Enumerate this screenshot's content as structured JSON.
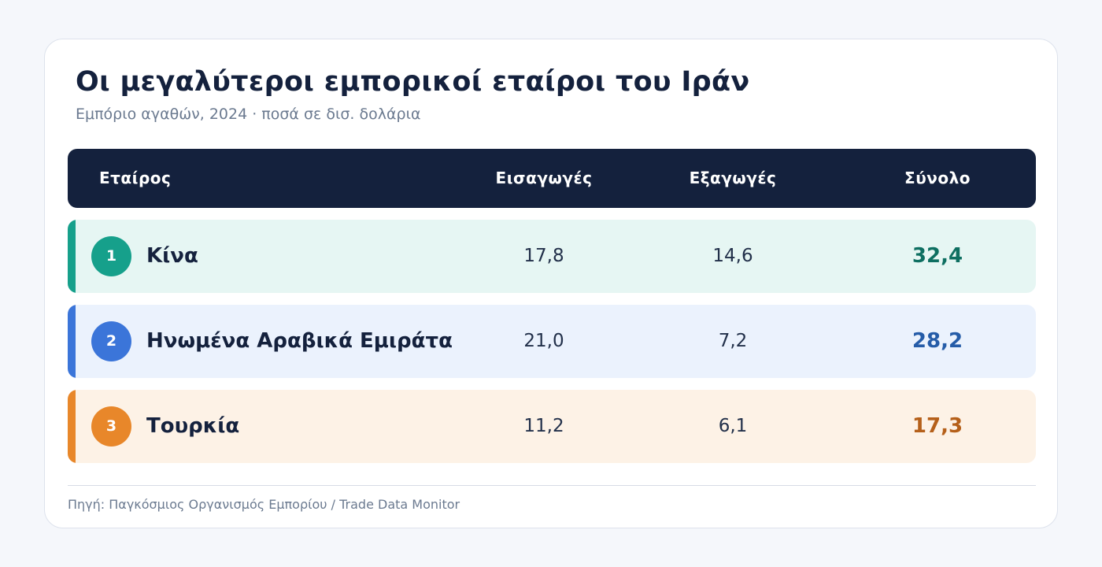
{
  "title": "Οι μεγαλύτεροι εμπορικοί εταίροι του Ιράν",
  "subtitle": "Εμπόριο αγαθών, 2024 · ποσά σε δισ. δολάρια",
  "table": {
    "headers": {
      "partner": "Εταίρος",
      "imports": "Εισαγωγές",
      "exports": "Εξαγωγές",
      "total": "Σύνολο"
    },
    "rows": [
      {
        "rank": "1",
        "partner": "Κίνα",
        "imports": "17,8",
        "exports": "14,6",
        "total": "32,4",
        "accent_color": "#16a08b",
        "background_color": "#e6f6f3",
        "total_color": "#0e6f61"
      },
      {
        "rank": "2",
        "partner": "Ηνωμένα Αραβικά Εμιράτα",
        "imports": "21,0",
        "exports": "7,2",
        "total": "28,2",
        "accent_color": "#3b75d9",
        "background_color": "#ebf2fd",
        "total_color": "#255ca8"
      },
      {
        "rank": "3",
        "partner": "Τουρκία",
        "imports": "11,2",
        "exports": "6,1",
        "total": "17,3",
        "accent_color": "#e8872a",
        "background_color": "#fdf2e6",
        "total_color": "#b5601a"
      }
    ]
  },
  "source": "Πηγή: Παγκόσμιος Οργανισμός Εμπορίου / Trade Data Monitor",
  "colors": {
    "page_background": "#f5f7fb",
    "header_background": "#14213d",
    "title_color": "#14213d",
    "muted_text": "#6b7a90"
  }
}
